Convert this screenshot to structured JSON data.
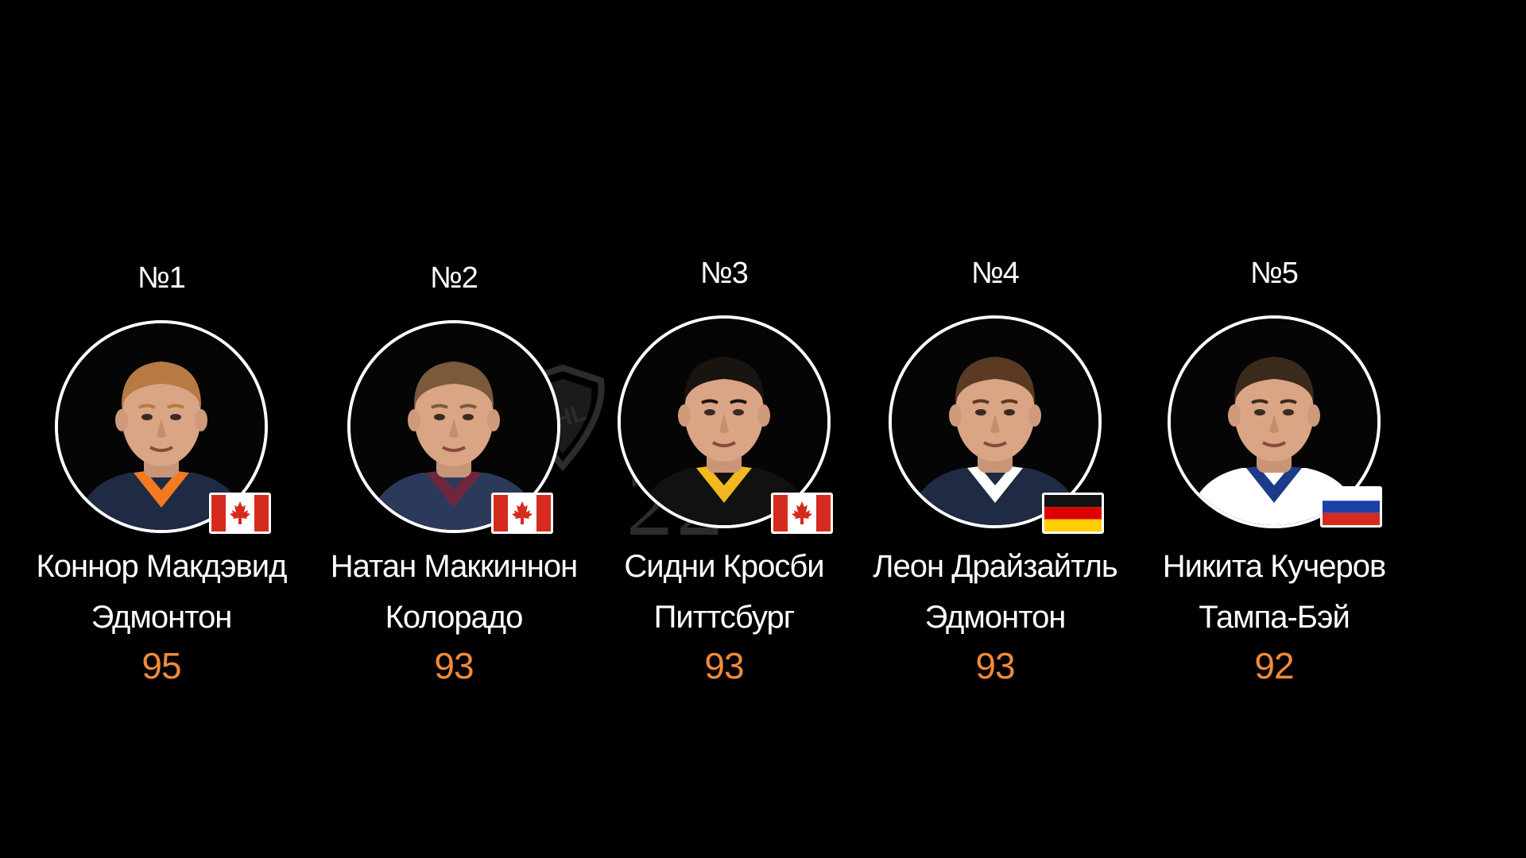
{
  "watermark": {
    "text": "NHL 22"
  },
  "players": [
    {
      "rank": "№1",
      "name": "Коннор Макдэвид",
      "team": "Эдмонтон",
      "rating": "95",
      "flag": "canada",
      "jersey_color": "#1f2a44",
      "jersey_accent": "#f47a20",
      "hair": "#b77a43"
    },
    {
      "rank": "№2",
      "name": "Натан Маккиннон",
      "team": "Колорадо",
      "rating": "93",
      "flag": "canada",
      "jersey_color": "#2b3a5a",
      "jersey_accent": "#6f263d",
      "hair": "#7a5a3a"
    },
    {
      "rank": "№3",
      "name": "Сидни Кросби",
      "team": "Питтсбург",
      "rating": "93",
      "flag": "canada",
      "jersey_color": "#111111",
      "jersey_accent": "#f2b81f",
      "hair": "#1a1410"
    },
    {
      "rank": "№4",
      "name": "Леон Драйзайтль",
      "team": "Эдмонтон",
      "rating": "93",
      "flag": "germany",
      "jersey_color": "#1f2a44",
      "jersey_accent": "#ffffff",
      "hair": "#5a3a22"
    },
    {
      "rank": "№5",
      "name": "Никита Кучеров",
      "team": "Тампа-Бэй",
      "rating": "92",
      "flag": "russia",
      "jersey_color": "#ffffff",
      "jersey_accent": "#1e3a8a",
      "hair": "#3a2a1c"
    }
  ],
  "colors": {
    "rating": "#f08a3a",
    "background": "#000000"
  }
}
